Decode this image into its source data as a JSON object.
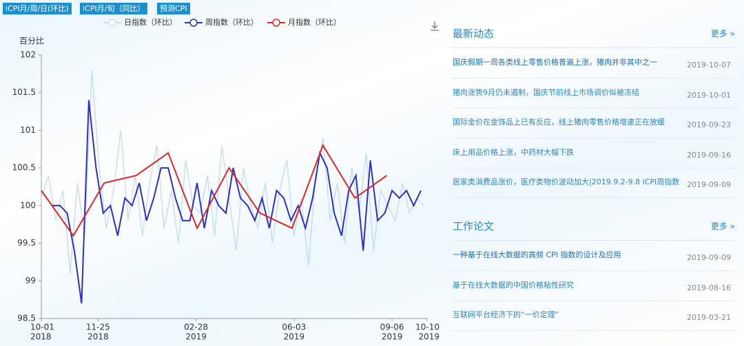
{
  "chart_data": {
    "type": "line",
    "buttons": [
      "iCPI月/周/日(环比)",
      "iCPI月/旬（同比）",
      "预测CPI"
    ],
    "ylabel": "百分比",
    "xlim": [
      "2018-10-01",
      "2019-10-10"
    ],
    "xticks": [
      {
        "value": "2018-10-01",
        "label": [
          "10-01",
          "2018"
        ]
      },
      {
        "value": "2018-11-25",
        "label": [
          "11-25",
          "2018"
        ]
      },
      {
        "value": "2019-02-28",
        "label": [
          "02-28",
          "2019"
        ]
      },
      {
        "value": "2019-06-03",
        "label": [
          "06-03",
          "2019"
        ]
      },
      {
        "value": "2019-09-06",
        "label": [
          "09-06",
          "2019"
        ]
      },
      {
        "value": "2019-10-10",
        "label": [
          "10-10",
          "2019"
        ]
      }
    ],
    "ylim": [
      98.5,
      102
    ],
    "yticks": [
      98.5,
      99,
      99.5,
      100,
      100.5,
      101,
      101.5,
      102
    ],
    "series": [
      {
        "name": "日指数（环比）",
        "color": "#c5def2",
        "x": [
          "2018-10-01",
          "2018-10-08",
          "2018-10-15",
          "2018-10-22",
          "2018-10-29",
          "2018-11-05",
          "2018-11-12",
          "2018-11-19",
          "2018-11-26",
          "2018-12-03",
          "2018-12-10",
          "2018-12-17",
          "2018-12-24",
          "2018-12-31",
          "2019-01-07",
          "2019-01-14",
          "2019-01-21",
          "2019-01-28",
          "2019-02-04",
          "2019-02-11",
          "2019-02-18",
          "2019-02-25",
          "2019-03-04",
          "2019-03-11",
          "2019-03-18",
          "2019-03-25",
          "2019-04-01",
          "2019-04-08",
          "2019-04-15",
          "2019-04-22",
          "2019-04-29",
          "2019-05-06",
          "2019-05-13",
          "2019-05-20",
          "2019-05-27",
          "2019-06-03",
          "2019-06-10",
          "2019-06-17",
          "2019-06-24",
          "2019-07-01",
          "2019-07-08",
          "2019-07-15",
          "2019-07-22",
          "2019-07-29",
          "2019-08-05",
          "2019-08-12",
          "2019-08-19",
          "2019-08-26",
          "2019-09-02",
          "2019-09-09",
          "2019-09-16",
          "2019-09-23",
          "2019-09-30",
          "2019-10-07"
        ],
        "values": [
          100.1,
          100.4,
          99.8,
          100.2,
          99.1,
          100.3,
          99.6,
          101.8,
          100.5,
          99.7,
          100.2,
          101,
          99.8,
          100.4,
          99.6,
          100.3,
          100.8,
          99.7,
          100.2,
          99.5,
          100.6,
          100,
          99.9,
          100.4,
          99.6,
          100.8,
          100.1,
          99.4,
          100.5,
          100,
          99.7,
          100.3,
          99.5,
          100.2,
          100.6,
          99.6,
          100.1,
          99.2,
          100.4,
          100.9,
          99.8,
          100.3,
          99.5,
          100.5,
          99.9,
          100.7,
          99.4,
          100.2,
          100,
          99.8,
          100.3,
          99.9,
          100.1,
          100
        ]
      },
      {
        "name": "周指数（环比）",
        "color": "#2c30c0",
        "x": [
          "2018-10-12",
          "2018-10-19",
          "2018-10-26",
          "2018-11-02",
          "2018-11-09",
          "2018-11-16",
          "2018-11-23",
          "2018-11-30",
          "2018-12-07",
          "2018-12-14",
          "2018-12-21",
          "2018-12-28",
          "2019-01-04",
          "2019-01-11",
          "2019-01-18",
          "2019-01-25",
          "2019-02-01",
          "2019-02-08",
          "2019-02-15",
          "2019-02-22",
          "2019-03-01",
          "2019-03-08",
          "2019-03-15",
          "2019-03-22",
          "2019-03-29",
          "2019-04-05",
          "2019-04-12",
          "2019-04-19",
          "2019-04-26",
          "2019-05-03",
          "2019-05-10",
          "2019-05-17",
          "2019-05-24",
          "2019-05-31",
          "2019-06-07",
          "2019-06-14",
          "2019-06-21",
          "2019-06-28",
          "2019-07-05",
          "2019-07-12",
          "2019-07-19",
          "2019-07-26",
          "2019-08-02",
          "2019-08-09",
          "2019-08-16",
          "2019-08-23",
          "2019-08-30",
          "2019-09-06",
          "2019-09-13",
          "2019-09-20",
          "2019-09-27",
          "2019-10-04"
        ],
        "values": [
          100,
          100,
          99.9,
          99.4,
          98.7,
          101.4,
          100.5,
          99.9,
          100,
          99.6,
          100.1,
          100,
          100.3,
          99.8,
          100.1,
          100.5,
          100.5,
          100.1,
          99.8,
          99.8,
          100.3,
          99.7,
          100.2,
          100,
          99.9,
          100.5,
          100.1,
          100,
          99.8,
          100.1,
          99.7,
          100.2,
          100.1,
          99.8,
          100,
          99.7,
          100.1,
          100.7,
          100.5,
          99.9,
          99.6,
          100.2,
          100.4,
          99.4,
          100.6,
          99.8,
          99.9,
          100.2,
          100.1,
          100.2,
          100,
          100.2
        ]
      },
      {
        "name": "月指数（环比）",
        "color": "#e02424",
        "x": [
          "2018-10-01",
          "2018-11-01",
          "2018-12-01",
          "2019-01-01",
          "2019-02-01",
          "2019-03-01",
          "2019-04-01",
          "2019-05-01",
          "2019-06-01",
          "2019-07-01",
          "2019-08-01",
          "2019-09-01"
        ],
        "values": [
          100.2,
          99.6,
          100.3,
          100.4,
          100.7,
          99.7,
          100.5,
          99.9,
          99.7,
          100.8,
          100.1,
          100.4
        ]
      }
    ]
  },
  "news": {
    "title": "最新动态",
    "more": "更多 »",
    "items": [
      {
        "title": "国庆假期一周各类线上零售价格普遍上涨，猪肉并非其中之一",
        "date": "2019-10-07"
      },
      {
        "title": "猪肉涨势9月仍未遏制，国庆节前线上市场调价似被冻结",
        "date": "2019-10-01"
      },
      {
        "title": "国际金价在金饰品上已有反应，线上猪肉零售价格增速正在放缓",
        "date": "2019-09-23"
      },
      {
        "title": "床上用品价格上涨，中药材大幅下跌",
        "date": "2019-09-16"
      },
      {
        "title": "居家类消费品涨价，医疗类物价波动加大|2019.9.2-9.8 iCPI周指数",
        "date": "2019-09-09"
      }
    ]
  },
  "papers": {
    "title": "工作论文",
    "more": "更多 »",
    "items": [
      {
        "title": "一种基于在线大数据的高频 CPI 指数的设计及应用",
        "date": "2019-09-09"
      },
      {
        "title": "基于在线大数据的中国价格粘性研究",
        "date": "2019-08-16"
      },
      {
        "title": "互联网平台经济下的“一价定理”",
        "date": "2019-03-21"
      }
    ]
  }
}
